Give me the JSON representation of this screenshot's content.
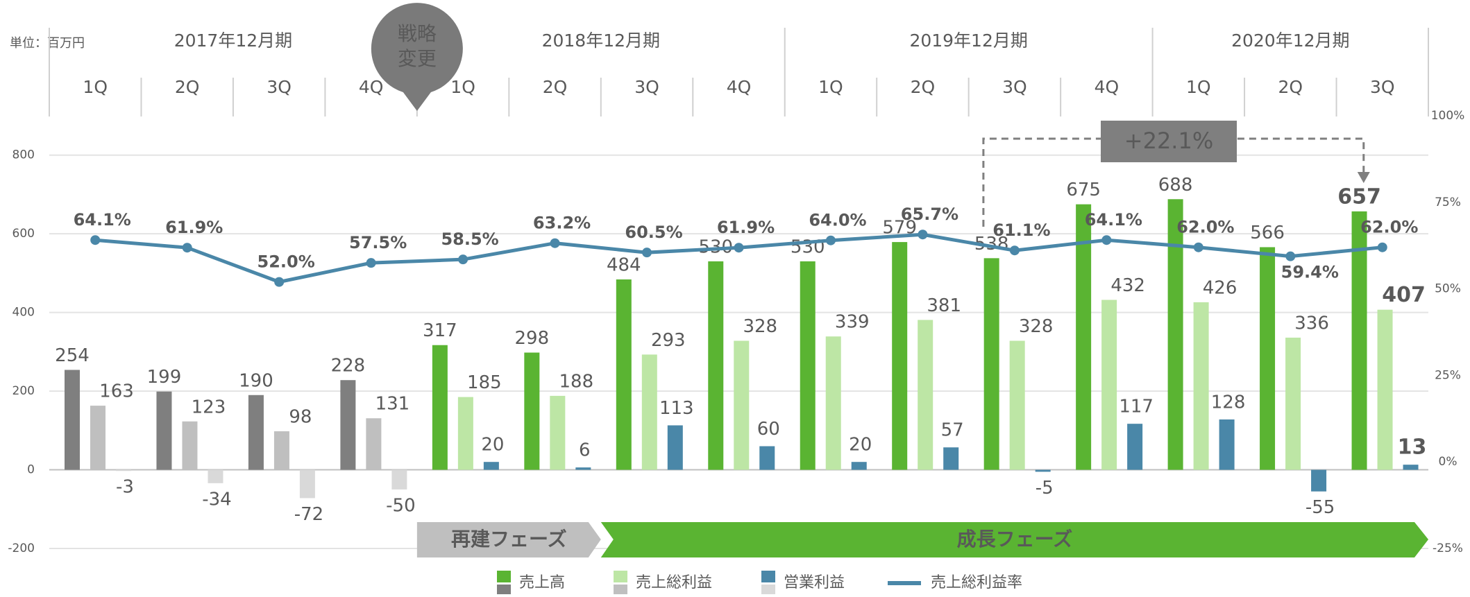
{
  "chart_data": {
    "type": "bar-line",
    "unit_label": "単位：百万円",
    "groups": [
      {
        "label": "2017年12月期",
        "categories": [
          "1Q",
          "2Q",
          "3Q",
          "4Q"
        ]
      },
      {
        "label": "2018年12月期",
        "categories": [
          "1Q",
          "2Q",
          "3Q",
          "4Q"
        ]
      },
      {
        "label": "2019年12月期",
        "categories": [
          "1Q",
          "2Q",
          "3Q",
          "4Q"
        ]
      },
      {
        "label": "2020年12月期",
        "categories": [
          "1Q",
          "2Q",
          "3Q"
        ]
      }
    ],
    "series": [
      {
        "name": "売上高",
        "type": "bar",
        "values": [
          254,
          199,
          190,
          228,
          317,
          298,
          484,
          530,
          530,
          579,
          538,
          675,
          688,
          566,
          657
        ],
        "colors": [
          "#7f7f7f",
          "#7f7f7f",
          "#7f7f7f",
          "#7f7f7f",
          "#5ab432",
          "#5ab432",
          "#5ab432",
          "#5ab432",
          "#5ab432",
          "#5ab432",
          "#5ab432",
          "#5ab432",
          "#5ab432",
          "#5ab432",
          "#5ab432"
        ]
      },
      {
        "name": "売上総利益",
        "type": "bar",
        "values": [
          163,
          123,
          98,
          131,
          185,
          188,
          293,
          328,
          339,
          381,
          328,
          432,
          426,
          336,
          407
        ],
        "colors": [
          "#bfbfbf",
          "#bfbfbf",
          "#bfbfbf",
          "#bfbfbf",
          "#bde6a5",
          "#bde6a5",
          "#bde6a5",
          "#bde6a5",
          "#bde6a5",
          "#bde6a5",
          "#bde6a5",
          "#bde6a5",
          "#bde6a5",
          "#bde6a5",
          "#bde6a5"
        ]
      },
      {
        "name": "営業利益",
        "type": "bar",
        "values": [
          -3,
          -34,
          -72,
          -50,
          20,
          6,
          113,
          60,
          20,
          57,
          -5,
          117,
          128,
          -55,
          13
        ],
        "colors": [
          "#d9d9d9",
          "#d9d9d9",
          "#d9d9d9",
          "#d9d9d9",
          "#4a87a8",
          "#4a87a8",
          "#4a87a8",
          "#4a87a8",
          "#4a87a8",
          "#4a87a8",
          "#4a87a8",
          "#4a87a8",
          "#4a87a8",
          "#4a87a8",
          "#4a87a8"
        ]
      },
      {
        "name": "売上総利益率",
        "type": "line",
        "axis": "y2",
        "color": "#4a87a8",
        "values": [
          64.1,
          61.9,
          52.0,
          57.5,
          58.5,
          63.2,
          60.5,
          61.9,
          64.0,
          65.7,
          61.1,
          64.1,
          62.0,
          59.4,
          62.0
        ],
        "value_labels": [
          "64.1%",
          "61.9%",
          "52.0%",
          "57.5%",
          "58.5%",
          "63.2%",
          "60.5%",
          "61.9%",
          "64.0%",
          "65.7%",
          "61.1%",
          "64.1%",
          "62.0%",
          "59.4%",
          "62.0%"
        ]
      }
    ],
    "ylim": [
      -200,
      900
    ],
    "yticks": [
      -200,
      0,
      200,
      400,
      600,
      800
    ],
    "y2lim": [
      -25,
      100
    ],
    "y2ticks": [
      {
        "value": -25,
        "label": "-25%"
      },
      {
        "value": 0,
        "label": "0%"
      },
      {
        "value": 25,
        "label": "25%"
      },
      {
        "value": 50,
        "label": "50%"
      },
      {
        "value": 75,
        "label": "75%"
      },
      {
        "value": 100,
        "label": "100%"
      }
    ],
    "grid": true,
    "annotations": {
      "strategy_change": [
        "戦略",
        "変更"
      ],
      "growth": "+22.1%",
      "phases": [
        "再建フェーズ",
        "成長フェーズ"
      ]
    }
  }
}
